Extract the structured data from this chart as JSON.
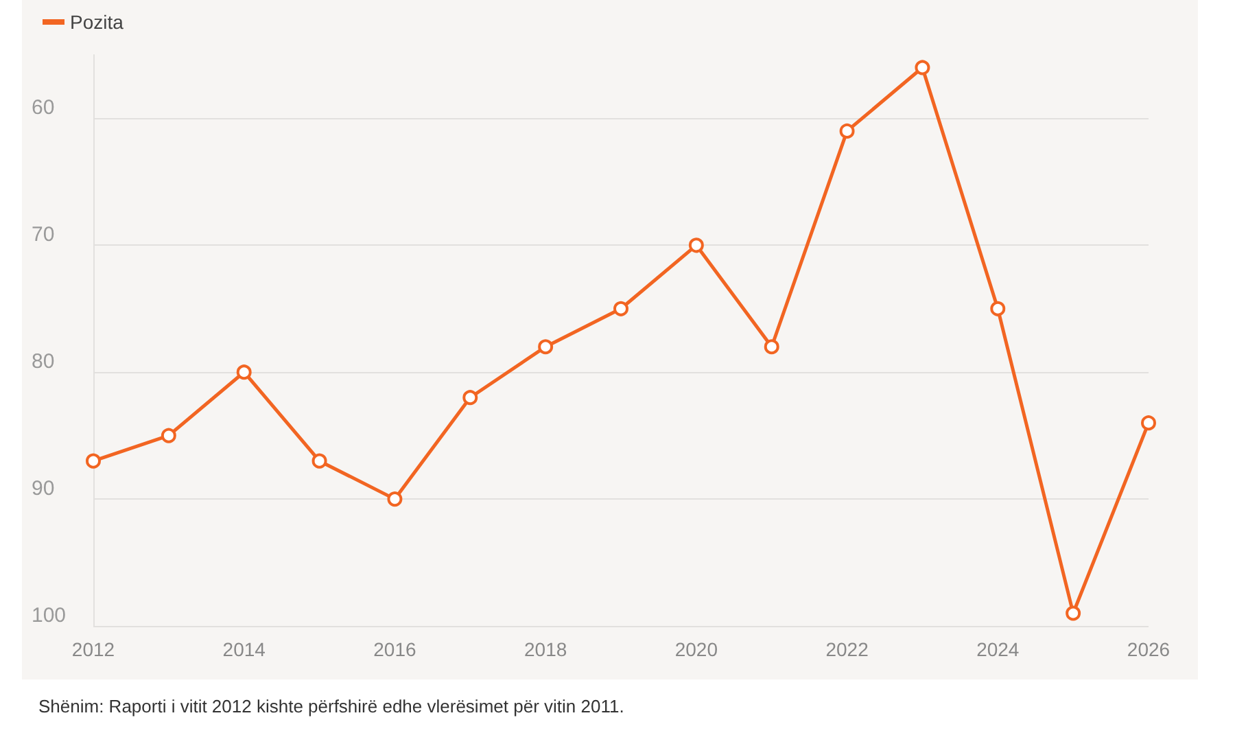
{
  "chart_data": {
    "type": "line",
    "x": [
      2012,
      2013,
      2014,
      2015,
      2016,
      2017,
      2018,
      2019,
      2020,
      2021,
      2022,
      2023,
      2024,
      2025,
      2026
    ],
    "series": [
      {
        "name": "Pozita",
        "color": "#f26522",
        "values": [
          87,
          85,
          80,
          87,
          90,
          82,
          78,
          75,
          70,
          78,
          61,
          56,
          75,
          99,
          84
        ]
      }
    ],
    "xlim": [
      2012,
      2026
    ],
    "xticks": [
      2012,
      2014,
      2016,
      2018,
      2020,
      2022,
      2024,
      2026
    ],
    "ylim": [
      100,
      55
    ],
    "yticks": [
      60,
      70,
      80,
      90,
      100
    ],
    "grid": "y",
    "legend": "top left",
    "marker": "circle",
    "line_style": "solid",
    "annotations": [
      "Shënim: Raporti i vitit 2012 kishte përfshirë edhe vlerësimet për vitin 2011."
    ]
  }
}
